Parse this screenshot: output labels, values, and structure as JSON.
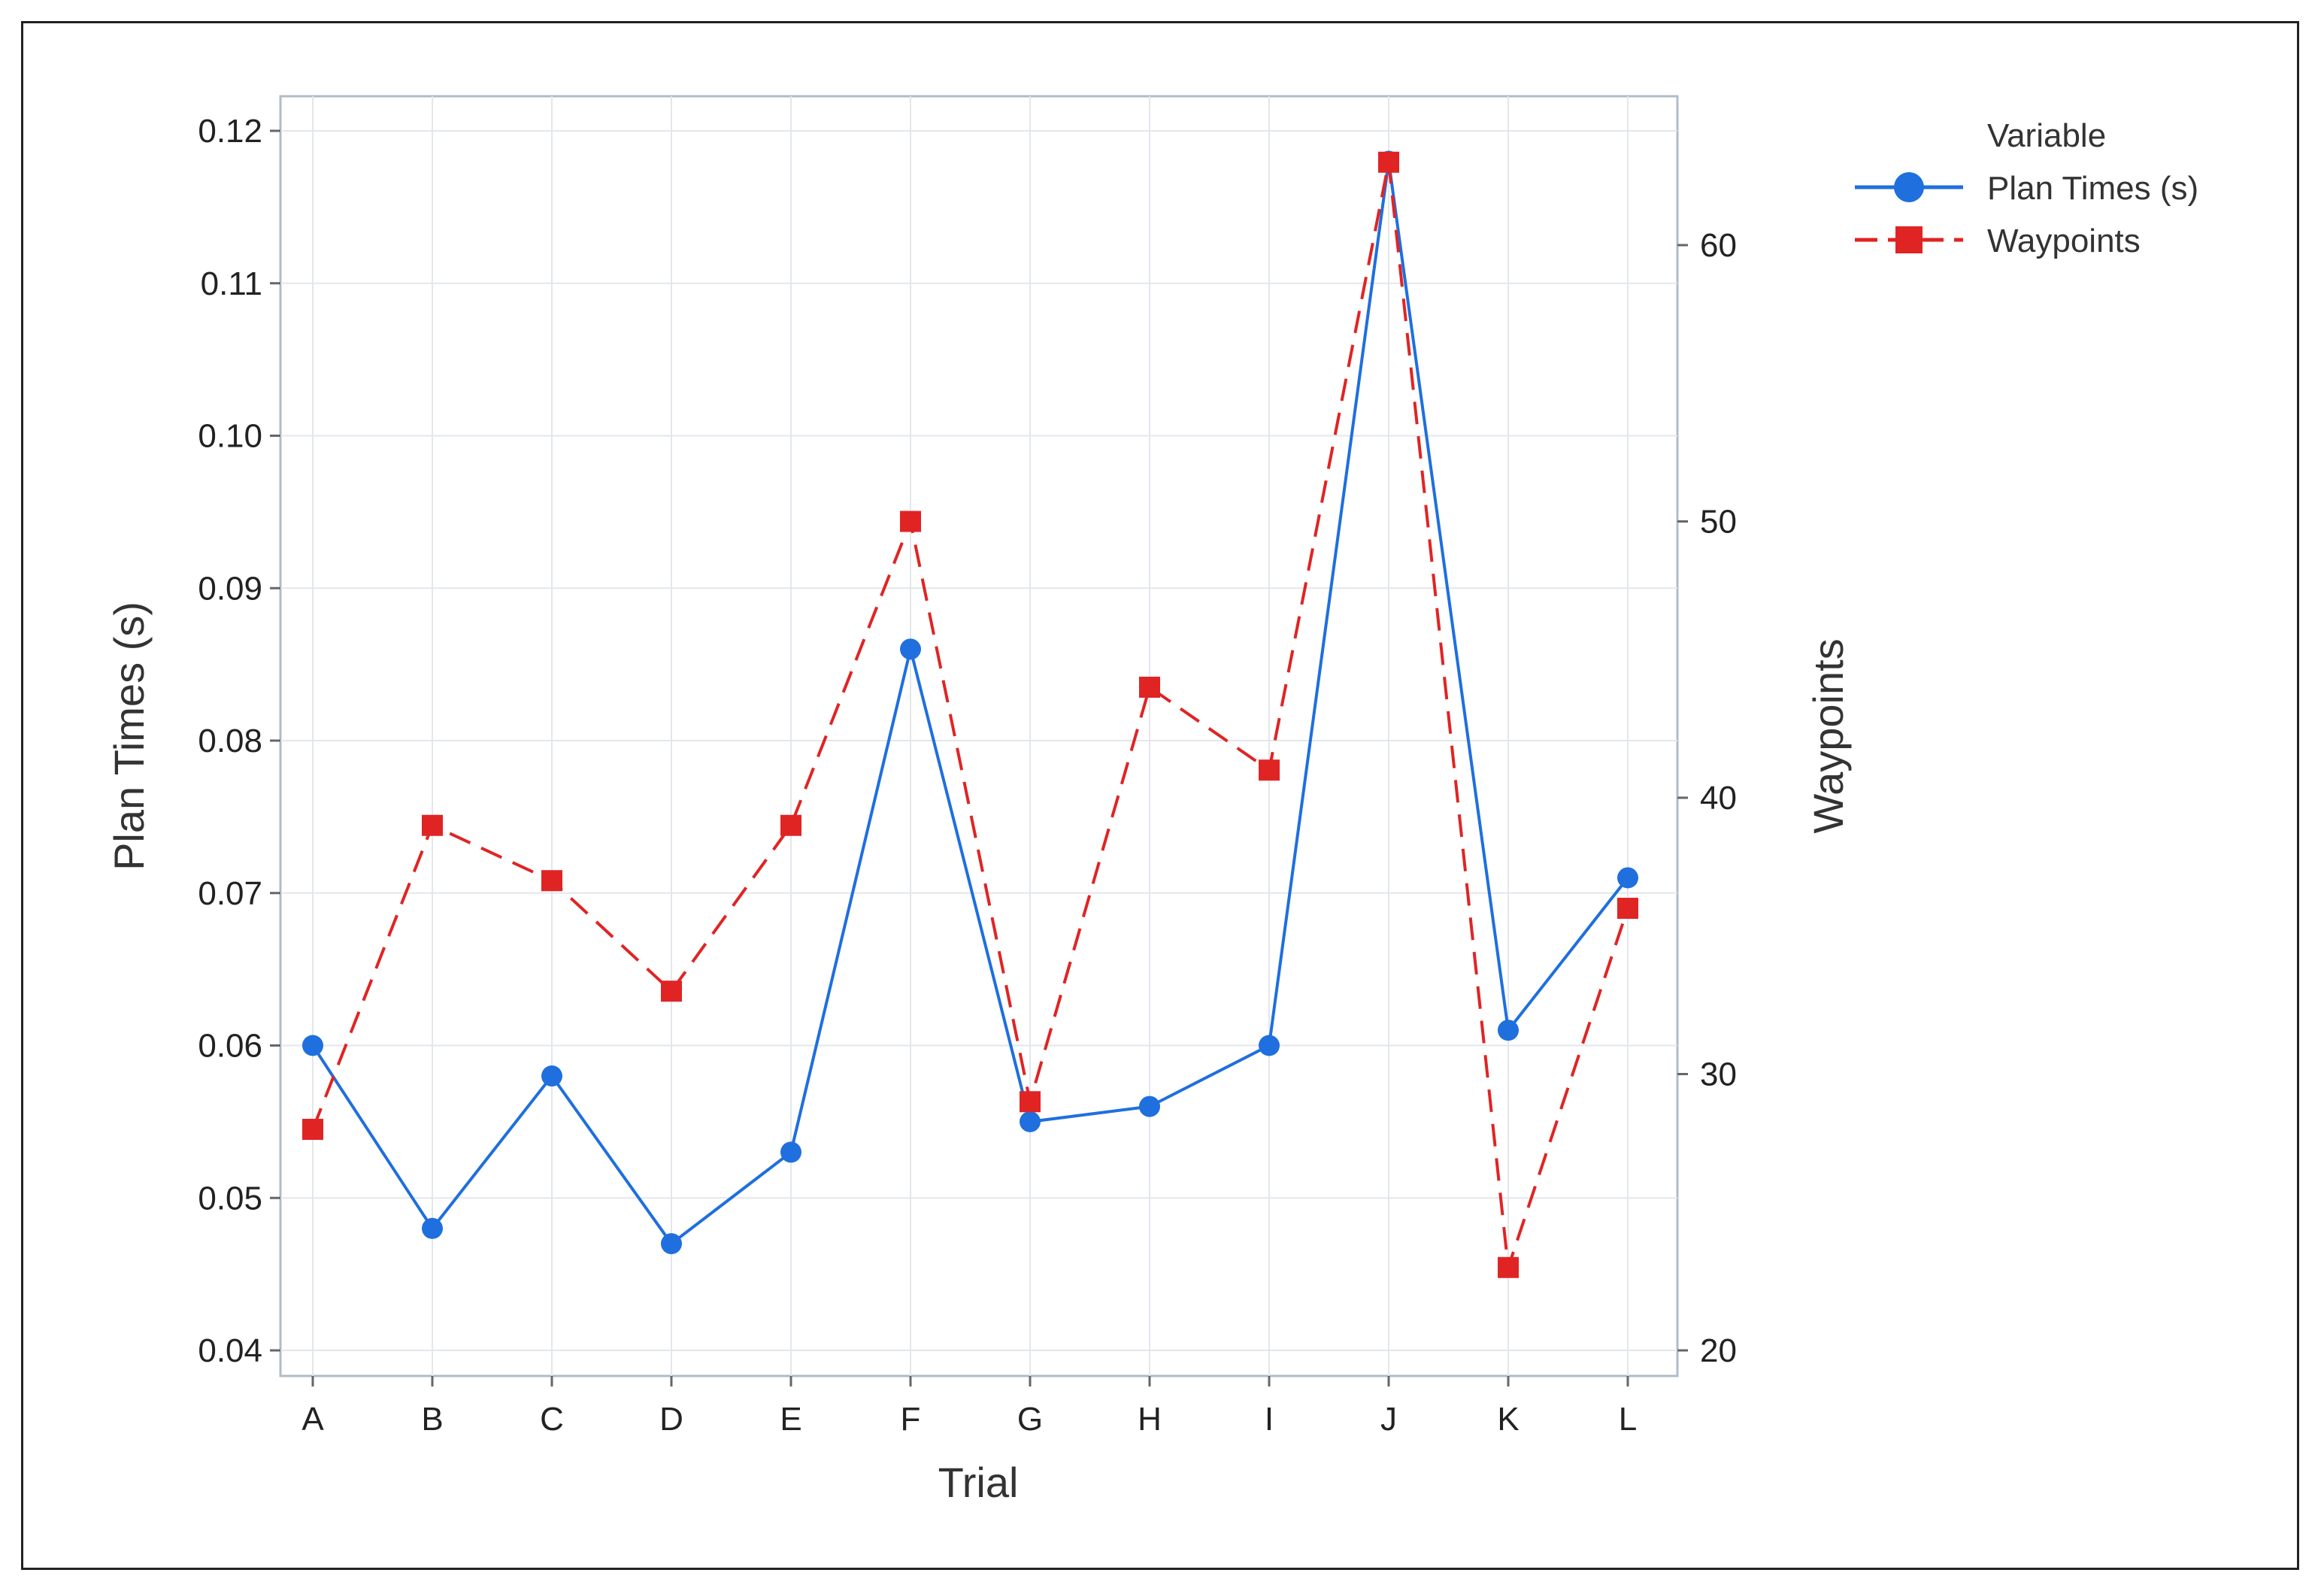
{
  "chart_data": {
    "type": "line",
    "categories": [
      "A",
      "B",
      "C",
      "D",
      "E",
      "F",
      "G",
      "H",
      "I",
      "J",
      "K",
      "L"
    ],
    "xlabel": "Trial",
    "ylabel_left": "Plan Times (s)",
    "ylabel_right": "Waypoints",
    "ylim_left": [
      0.04,
      0.12
    ],
    "ylim_right": [
      20,
      63
    ],
    "yticks_left": [
      "0.04",
      "0.05",
      "0.06",
      "0.07",
      "0.08",
      "0.09",
      "0.10",
      "0.11",
      "0.12"
    ],
    "yticks_right": [
      "20",
      "30",
      "40",
      "50",
      "60"
    ],
    "grid": true,
    "legend_position": "top-right",
    "legend_title": "Variable",
    "series": [
      {
        "name": "Plan Times (s)",
        "axis": "left",
        "color": "#1f6fde",
        "marker": "circle",
        "line": "solid",
        "values": [
          0.06,
          0.048,
          0.058,
          0.047,
          0.053,
          0.086,
          0.055,
          0.056,
          0.06,
          0.118,
          0.061,
          0.071
        ]
      },
      {
        "name": "Waypoints",
        "axis": "right",
        "color": "#e02424",
        "marker": "square",
        "line": "dashed",
        "values": [
          28,
          39,
          37,
          33,
          39,
          50,
          29,
          44,
          41,
          63,
          23,
          36
        ]
      }
    ]
  }
}
